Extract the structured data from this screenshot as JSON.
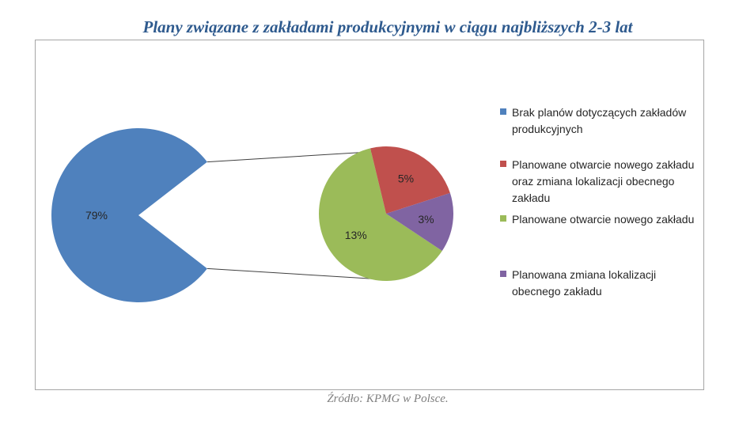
{
  "title": "Plany związane z zakładami produkcyjnymi w ciągu najbliższych 2-3 lat",
  "source": "Źródło: KPMG w Polsce.",
  "chart_data": {
    "type": "pie",
    "subtype": "pie-of-pie",
    "title": "Plany związane z zakładami produkcyjnymi w ciągu najbliższych 2-3 lat",
    "main_pie": {
      "slices": [
        {
          "label": "Brak planów dotyczących zakładów produkcyjnych",
          "value": 79,
          "data_label": "79%",
          "color": "#4f81bd"
        }
      ],
      "other_value": 21
    },
    "secondary_pie": {
      "slices": [
        {
          "label": "Planowane otwarcie nowego zakładu",
          "value": 13,
          "data_label": "13%",
          "color": "#9bbb59"
        },
        {
          "label": "Planowane otwarcie nowego zakładu oraz zmiana lokalizacji obecnego zakładu",
          "value": 5,
          "data_label": "5%",
          "color": "#c0504d"
        },
        {
          "label": "Planowana zmiana lokalizacji obecnego zakładu",
          "value": 3,
          "data_label": "3%",
          "color": "#8064a2"
        }
      ]
    },
    "legend": [
      {
        "label": "Brak planów dotyczących zakładów produkcyjnych",
        "color": "#4f81bd"
      },
      {
        "label": "Planowane otwarcie nowego zakładu oraz zmiana lokalizacji obecnego zakładu",
        "color": "#c0504d"
      },
      {
        "label": "Planowane otwarcie nowego zakładu",
        "color": "#9bbb59"
      },
      {
        "label": "Planowana zmiana lokalizacji obecnego zakładu",
        "color": "#8064a2"
      }
    ],
    "legend_position": "right"
  }
}
